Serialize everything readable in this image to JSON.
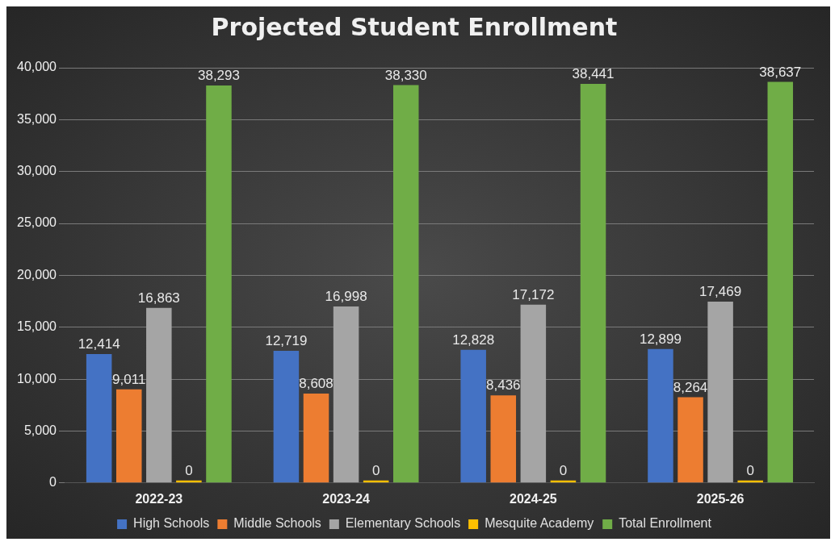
{
  "chart_data": {
    "type": "bar",
    "title": "Projected Student Enrollment",
    "categories": [
      "2022-23",
      "2023-24",
      "2024-25",
      "2025-26"
    ],
    "series": [
      {
        "name": "High Schools",
        "color": "#4472c4",
        "values": [
          12414,
          12719,
          12828,
          12899
        ],
        "value_labels": [
          "12,414",
          "12,719",
          "12,828",
          "12,899"
        ]
      },
      {
        "name": "Middle Schools",
        "color": "#ed7d31",
        "values": [
          9011,
          8608,
          8436,
          8264
        ],
        "value_labels": [
          "9,011",
          "8,608",
          "8,436",
          "8,264"
        ]
      },
      {
        "name": "Elementary Schools",
        "color": "#a5a5a5",
        "values": [
          16863,
          16998,
          17172,
          17469
        ],
        "value_labels": [
          "16,863",
          "16,998",
          "17,172",
          "17,469"
        ]
      },
      {
        "name": "Mesquite Academy",
        "color": "#ffc000",
        "values": [
          0,
          0,
          0,
          0
        ],
        "value_labels": [
          "0",
          "0",
          "0",
          "0"
        ]
      },
      {
        "name": "Total Enrollment",
        "color": "#70ad47",
        "values": [
          38293,
          38330,
          38441,
          38637
        ],
        "value_labels": [
          "38,293",
          "38,330",
          "38,441",
          "38,637"
        ]
      }
    ],
    "ylim": [
      0,
      40000
    ],
    "yticks": [
      0,
      {
        "value": 5000,
        "label": "5,000"
      },
      {
        "value": 10000,
        "label": "10,000"
      },
      {
        "value": 15000,
        "label": "15,000"
      },
      {
        "value": 20000,
        "label": "20,000"
      },
      {
        "value": 25000,
        "label": "25,000"
      },
      {
        "value": 30000,
        "label": "30,000"
      },
      {
        "value": 35000,
        "label": "35,000"
      },
      {
        "value": 40000,
        "label": "40,000"
      }
    ],
    "grid": "y",
    "legend": "bottom"
  }
}
